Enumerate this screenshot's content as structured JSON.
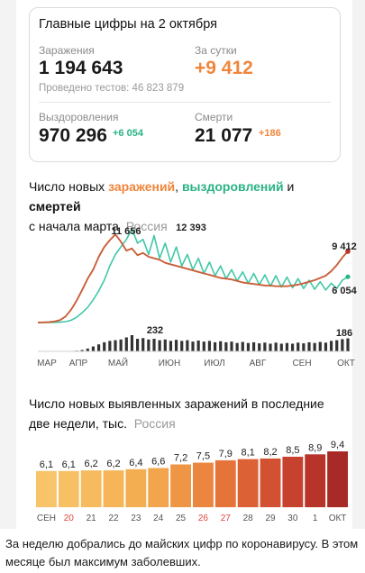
{
  "summary": {
    "title": "Главные цифры на 2 октября",
    "infections_label": "Заражения",
    "infections_value": "1 194 643",
    "daily_label": "За сутки",
    "daily_value": "+9 412",
    "tests_text": "Проведено тестов: 46 823 879",
    "recovered_label": "Выздоровления",
    "recovered_value": "970 296",
    "recovered_delta": "+6 054",
    "deaths_label": "Смерти",
    "deaths_value": "21 077",
    "deaths_delta": "+186"
  },
  "chart1": {
    "title_prefix": "Число новых ",
    "title_infections": "заражений",
    "title_comma": ", ",
    "title_recoveries": "выздоровлений",
    "title_and": " и ",
    "title_deaths": "смертей",
    "title_line2": "с начала марта",
    "title_region": "Россия"
  },
  "chart2": {
    "title_text": "Число новых выявленных заражений в последние две недели, тыс.",
    "title_region": "Россия"
  },
  "caption": "За неделю добрались до майских цифр по коронавирусу. В этом месяце был максимум заболевших.",
  "chart_data": [
    {
      "type": "line",
      "x_ticks": [
        "МАР",
        "АПР",
        "МАЙ",
        "ИЮН",
        "ИЮЛ",
        "АВГ",
        "СЕН",
        "ОКТ"
      ],
      "series": [
        {
          "name": "заражений",
          "color": "#c9603a",
          "values": [
            0,
            20,
            60,
            140,
            320,
            800,
            1700,
            2900,
            4300,
            5800,
            7000,
            8700,
            10000,
            10900,
            11656,
            10700,
            9500,
            9800,
            8900,
            9200,
            8700,
            8500,
            8300,
            7900,
            7700,
            7500,
            7300,
            7100,
            6900,
            6700,
            6500,
            6300,
            6100,
            5900,
            5800,
            5700,
            5500,
            5300,
            5200,
            5100,
            5000,
            4900,
            4900,
            4800,
            4800,
            4800,
            4900,
            5000,
            5200,
            5400,
            5600,
            5900,
            6200,
            6800,
            7600,
            8600,
            9412
          ]
        },
        {
          "name": "выздоровлений",
          "color": "#40c8a8",
          "values": [
            0,
            0,
            10,
            20,
            50,
            120,
            300,
            700,
            1300,
            2000,
            3000,
            4200,
            5600,
            7500,
            9000,
            10000,
            11000,
            12393,
            10500,
            11000,
            9000,
            11500,
            8500,
            10500,
            8000,
            10000,
            7500,
            9000,
            7000,
            8500,
            6500,
            8000,
            6200,
            7500,
            5800,
            7000,
            5500,
            6700,
            5200,
            6500,
            5000,
            6300,
            4800,
            6200,
            4700,
            6000,
            4600,
            5800,
            4500,
            5600,
            4400,
            5400,
            4300,
            5200,
            4500,
            5600,
            6054
          ]
        },
        {
          "name": "смертей",
          "color": "#333333",
          "values": [
            0,
            0,
            0,
            0,
            0,
            2,
            5,
            10,
            20,
            40,
            70,
            100,
            130,
            150,
            160,
            170,
            200,
            232,
            180,
            190,
            170,
            180,
            160,
            170,
            150,
            165,
            150,
            160,
            140,
            155,
            140,
            150,
            130,
            145,
            130,
            140,
            120,
            135,
            120,
            130,
            115,
            125,
            110,
            125,
            110,
            120,
            110,
            125,
            115,
            130,
            120,
            135,
            125,
            150,
            160,
            175,
            186
          ]
        }
      ],
      "annotations": [
        "11 656",
        "12 393",
        "9 412",
        "6 054",
        "232",
        "186"
      ]
    },
    {
      "type": "bar",
      "categories": [
        "СЕН",
        "20",
        "21",
        "22",
        "23",
        "24",
        "25",
        "26",
        "27",
        "28",
        "29",
        "30",
        "1",
        "ОКТ"
      ],
      "values": [
        6.1,
        6.1,
        6.2,
        6.2,
        6.4,
        6.6,
        7.2,
        7.5,
        7.9,
        8.1,
        8.2,
        8.5,
        8.9,
        9.4
      ],
      "value_labels": [
        "6,1",
        "6,1",
        "6,2",
        "6,2",
        "6,4",
        "6,6",
        "7,2",
        "7,5",
        "7,9",
        "8,1",
        "8,2",
        "8,5",
        "8,9",
        "9,4"
      ],
      "highlight_categories": [
        "20",
        "26",
        "27"
      ],
      "highlight_color": "#e0463a",
      "bar_colors": [
        "#f7c46a",
        "#f7c064",
        "#f6bb5e",
        "#f5b558",
        "#f4ae52",
        "#f2a54c",
        "#ee9646",
        "#ea8640",
        "#e4743a",
        "#dc6236",
        "#d25132",
        "#c6412e",
        "#b8332a",
        "#a82a26"
      ]
    }
  ]
}
